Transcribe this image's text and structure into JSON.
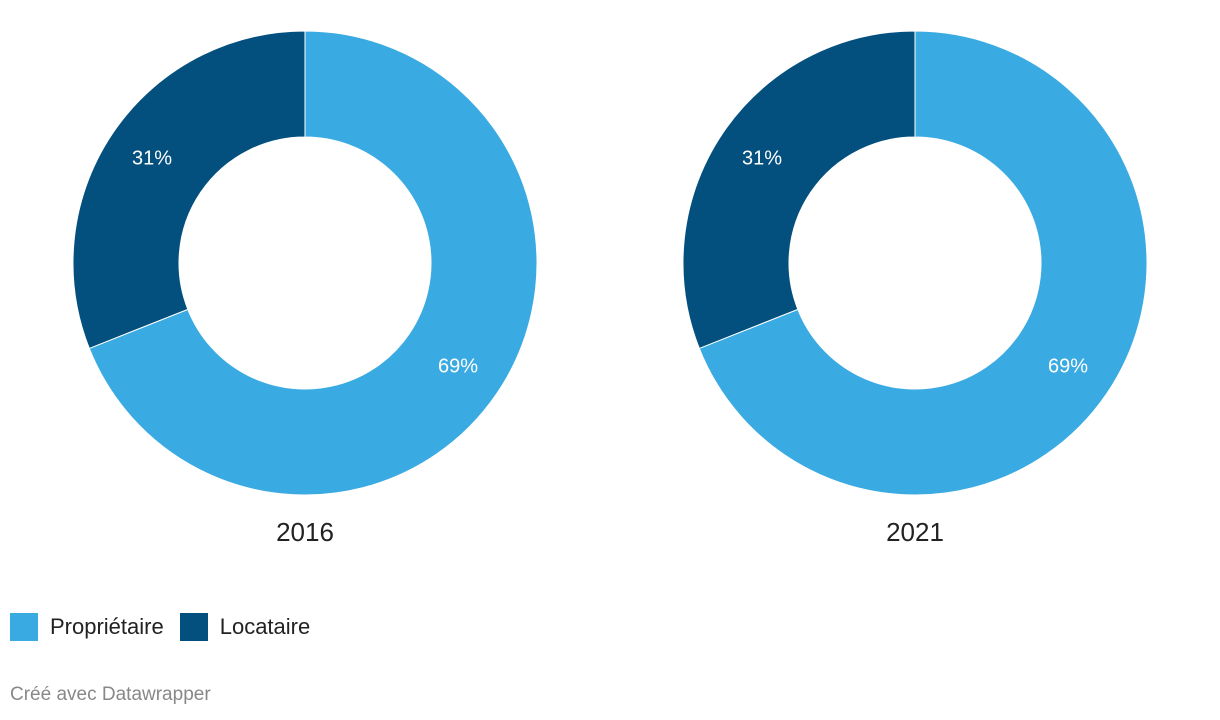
{
  "chart_data": {
    "type": "pie",
    "charts": [
      {
        "label": "2016",
        "slices": [
          {
            "name": "Propriétaire",
            "value": 69,
            "label": "69%"
          },
          {
            "name": "Locataire",
            "value": 31,
            "label": "31%"
          }
        ]
      },
      {
        "label": "2021",
        "slices": [
          {
            "name": "Propriétaire",
            "value": 69,
            "label": "69%"
          },
          {
            "name": "Locataire",
            "value": 31,
            "label": "31%"
          }
        ]
      }
    ],
    "legend": [
      {
        "name": "Propriétaire",
        "color": "#3aaae2"
      },
      {
        "name": "Locataire",
        "color": "#03507f"
      }
    ],
    "legend_position": "bottom-left"
  },
  "footer": {
    "credit": "Créé avec Datawrapper"
  }
}
